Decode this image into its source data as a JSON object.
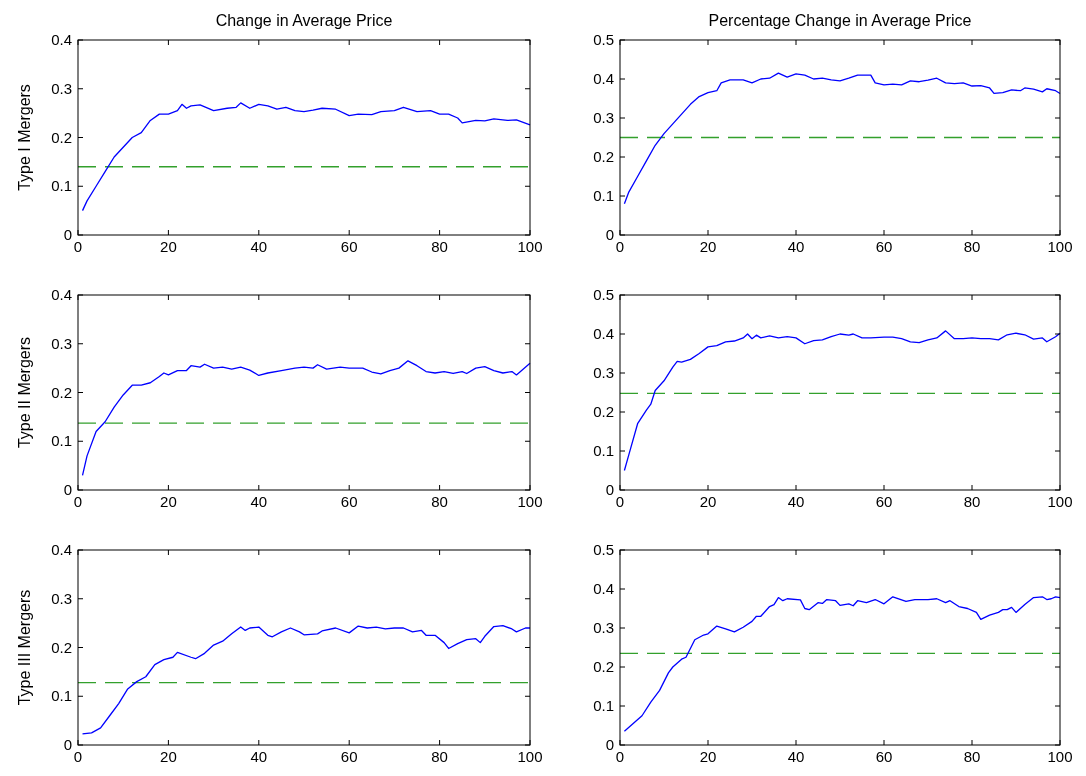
{
  "chart_data": [
    {
      "type": "line",
      "title": "Change in Average Price",
      "ylabel": "Type I Mergers",
      "xlim": [
        0,
        100
      ],
      "xticks": [
        0,
        20,
        40,
        60,
        80,
        100
      ],
      "ylim": [
        0,
        0.4
      ],
      "yticks": [
        0,
        0.1,
        0.2,
        0.3,
        0.4
      ],
      "grid": false,
      "line_style": "solid",
      "ref_lines": [
        {
          "axis": "y",
          "value": 0.14,
          "color": "#33a02c",
          "line_style": "dashed"
        }
      ],
      "series": [
        {
          "color": "#0000ff",
          "x": [
            1,
            2,
            4,
            6,
            8,
            10,
            12,
            14,
            16,
            18,
            20,
            22,
            23,
            24,
            25,
            27,
            30,
            33,
            35,
            36,
            38,
            40,
            42,
            44,
            46,
            48,
            50,
            52,
            54,
            57,
            60,
            62,
            65,
            67,
            70,
            72,
            75,
            78,
            80,
            82,
            84,
            85,
            88,
            90,
            92,
            95,
            97,
            100
          ],
          "values": [
            0.05,
            0.07,
            0.1,
            0.13,
            0.16,
            0.18,
            0.2,
            0.21,
            0.235,
            0.248,
            0.248,
            0.255,
            0.268,
            0.26,
            0.265,
            0.267,
            0.255,
            0.26,
            0.262,
            0.271,
            0.26,
            0.268,
            0.265,
            0.258,
            0.262,
            0.255,
            0.253,
            0.256,
            0.26,
            0.258,
            0.245,
            0.248,
            0.247,
            0.253,
            0.255,
            0.262,
            0.253,
            0.255,
            0.248,
            0.248,
            0.24,
            0.23,
            0.235,
            0.234,
            0.238,
            0.235,
            0.236,
            0.226
          ]
        }
      ]
    },
    {
      "type": "line",
      "title": "Percentage Change in Average Price",
      "xlim": [
        0,
        100
      ],
      "xticks": [
        0,
        20,
        40,
        60,
        80,
        100
      ],
      "ylim": [
        0,
        0.5
      ],
      "yticks": [
        0,
        0.1,
        0.2,
        0.3,
        0.4,
        0.5
      ],
      "grid": false,
      "line_style": "solid",
      "ref_lines": [
        {
          "axis": "y",
          "value": 0.25,
          "color": "#33a02c",
          "line_style": "dashed"
        }
      ],
      "series": [
        {
          "color": "#0000ff",
          "x": [
            1,
            2,
            4,
            6,
            8,
            10,
            12,
            14,
            16,
            18,
            20,
            22,
            23,
            25,
            28,
            30,
            32,
            34,
            36,
            38,
            40,
            42,
            44,
            46,
            48,
            50,
            52,
            54,
            57,
            58,
            60,
            62,
            64,
            66,
            68,
            70,
            72,
            74,
            76,
            78,
            80,
            82,
            84,
            85,
            87,
            89,
            91,
            92,
            94,
            96,
            97,
            99,
            100
          ],
          "values": [
            0.08,
            0.11,
            0.15,
            0.19,
            0.23,
            0.26,
            0.285,
            0.31,
            0.335,
            0.355,
            0.365,
            0.37,
            0.39,
            0.398,
            0.398,
            0.39,
            0.4,
            0.402,
            0.415,
            0.405,
            0.413,
            0.41,
            0.4,
            0.402,
            0.398,
            0.395,
            0.402,
            0.41,
            0.41,
            0.39,
            0.385,
            0.387,
            0.385,
            0.395,
            0.393,
            0.397,
            0.402,
            0.39,
            0.388,
            0.39,
            0.382,
            0.383,
            0.377,
            0.363,
            0.365,
            0.372,
            0.37,
            0.377,
            0.374,
            0.367,
            0.375,
            0.37,
            0.363
          ]
        }
      ]
    },
    {
      "type": "line",
      "ylabel": "Type II Mergers",
      "xlim": [
        0,
        100
      ],
      "xticks": [
        0,
        20,
        40,
        60,
        80,
        100
      ],
      "ylim": [
        0,
        0.4
      ],
      "yticks": [
        0,
        0.1,
        0.2,
        0.3,
        0.4
      ],
      "grid": false,
      "line_style": "solid",
      "ref_lines": [
        {
          "axis": "y",
          "value": 0.137,
          "color": "#33a02c",
          "line_style": "dashed"
        }
      ],
      "series": [
        {
          "color": "#0000ff",
          "x": [
            1,
            2,
            4,
            6,
            8,
            10,
            12,
            14,
            16,
            18,
            19,
            20,
            22,
            24,
            25,
            27,
            28,
            30,
            32,
            34,
            36,
            38,
            40,
            42,
            45,
            48,
            50,
            52,
            53,
            55,
            58,
            60,
            63,
            65,
            67,
            69,
            71,
            73,
            75,
            77,
            79,
            81,
            83,
            85,
            86,
            88,
            90,
            92,
            94,
            96,
            97,
            100
          ],
          "values": [
            0.03,
            0.07,
            0.12,
            0.14,
            0.17,
            0.195,
            0.215,
            0.215,
            0.22,
            0.233,
            0.24,
            0.236,
            0.245,
            0.245,
            0.255,
            0.252,
            0.258,
            0.25,
            0.252,
            0.248,
            0.252,
            0.246,
            0.235,
            0.24,
            0.245,
            0.25,
            0.252,
            0.25,
            0.257,
            0.248,
            0.252,
            0.25,
            0.25,
            0.242,
            0.238,
            0.245,
            0.25,
            0.265,
            0.255,
            0.243,
            0.24,
            0.243,
            0.239,
            0.243,
            0.239,
            0.25,
            0.253,
            0.245,
            0.24,
            0.243,
            0.236,
            0.26
          ]
        }
      ]
    },
    {
      "type": "line",
      "xlim": [
        0,
        100
      ],
      "xticks": [
        0,
        20,
        40,
        60,
        80,
        100
      ],
      "ylim": [
        0,
        0.5
      ],
      "yticks": [
        0,
        0.1,
        0.2,
        0.3,
        0.4,
        0.5
      ],
      "grid": false,
      "line_style": "solid",
      "ref_lines": [
        {
          "axis": "y",
          "value": 0.248,
          "color": "#33a02c",
          "line_style": "dashed"
        }
      ],
      "series": [
        {
          "color": "#0000ff",
          "x": [
            1,
            2,
            4,
            6,
            7,
            8,
            10,
            12,
            13,
            14,
            16,
            18,
            20,
            22,
            24,
            26,
            28,
            29,
            30,
            31,
            32,
            34,
            36,
            38,
            40,
            42,
            44,
            46,
            48,
            50,
            52,
            53,
            55,
            57,
            60,
            62,
            64,
            66,
            68,
            70,
            72,
            74,
            76,
            78,
            80,
            82,
            84,
            86,
            88,
            90,
            92,
            94,
            96,
            97,
            99,
            100
          ],
          "values": [
            0.05,
            0.09,
            0.17,
            0.205,
            0.22,
            0.255,
            0.28,
            0.315,
            0.33,
            0.328,
            0.335,
            0.35,
            0.367,
            0.37,
            0.38,
            0.382,
            0.39,
            0.4,
            0.388,
            0.397,
            0.39,
            0.395,
            0.39,
            0.393,
            0.39,
            0.375,
            0.383,
            0.385,
            0.393,
            0.4,
            0.397,
            0.4,
            0.39,
            0.39,
            0.392,
            0.392,
            0.388,
            0.38,
            0.378,
            0.385,
            0.39,
            0.408,
            0.388,
            0.388,
            0.39,
            0.388,
            0.388,
            0.385,
            0.398,
            0.402,
            0.398,
            0.387,
            0.39,
            0.38,
            0.393,
            0.402
          ]
        }
      ]
    },
    {
      "type": "line",
      "ylabel": "Type III Mergers",
      "xlim": [
        0,
        100
      ],
      "xticks": [
        0,
        20,
        40,
        60,
        80,
        100
      ],
      "ylim": [
        0,
        0.4
      ],
      "yticks": [
        0,
        0.1,
        0.2,
        0.3,
        0.4
      ],
      "grid": false,
      "line_style": "solid",
      "ref_lines": [
        {
          "axis": "y",
          "value": 0.128,
          "color": "#33a02c",
          "line_style": "dashed"
        }
      ],
      "series": [
        {
          "color": "#0000ff",
          "x": [
            1,
            3,
            5,
            7,
            9,
            11,
            13,
            15,
            17,
            19,
            21,
            22,
            25,
            26,
            28,
            30,
            32,
            34,
            36,
            37,
            38,
            40,
            42,
            43,
            45,
            47,
            49,
            50,
            53,
            54,
            57,
            60,
            62,
            64,
            66,
            68,
            70,
            72,
            74,
            76,
            77,
            79,
            81,
            82,
            84,
            86,
            88,
            89,
            90,
            92,
            94,
            96,
            97,
            99,
            100
          ],
          "values": [
            0.023,
            0.025,
            0.035,
            0.06,
            0.085,
            0.115,
            0.13,
            0.14,
            0.165,
            0.175,
            0.18,
            0.19,
            0.18,
            0.177,
            0.188,
            0.205,
            0.213,
            0.228,
            0.242,
            0.235,
            0.24,
            0.242,
            0.225,
            0.222,
            0.232,
            0.24,
            0.232,
            0.226,
            0.228,
            0.234,
            0.24,
            0.23,
            0.244,
            0.24,
            0.242,
            0.238,
            0.24,
            0.24,
            0.232,
            0.235,
            0.225,
            0.225,
            0.21,
            0.198,
            0.208,
            0.216,
            0.218,
            0.21,
            0.223,
            0.243,
            0.245,
            0.238,
            0.232,
            0.24,
            0.24
          ]
        }
      ]
    },
    {
      "type": "line",
      "xlim": [
        0,
        100
      ],
      "xticks": [
        0,
        20,
        40,
        60,
        80,
        100
      ],
      "ylim": [
        0,
        0.5
      ],
      "yticks": [
        0,
        0.1,
        0.2,
        0.3,
        0.4,
        0.5
      ],
      "grid": false,
      "line_style": "solid",
      "ref_lines": [
        {
          "axis": "y",
          "value": 0.235,
          "color": "#33a02c",
          "line_style": "dashed"
        }
      ],
      "series": [
        {
          "color": "#0000ff",
          "x": [
            1,
            3,
            5,
            7,
            9,
            11,
            12,
            14,
            15,
            17,
            19,
            20,
            22,
            24,
            26,
            28,
            30,
            31,
            32,
            34,
            35,
            36,
            37,
            38,
            41,
            42,
            43,
            45,
            46,
            47,
            49,
            50,
            52,
            53,
            54,
            56,
            58,
            60,
            62,
            64,
            65,
            67,
            70,
            72,
            74,
            75,
            77,
            79,
            81,
            82,
            84,
            86,
            87,
            88,
            89,
            90,
            92,
            94,
            96,
            97,
            98,
            99,
            100
          ],
          "values": [
            0.035,
            0.055,
            0.075,
            0.11,
            0.14,
            0.185,
            0.2,
            0.22,
            0.225,
            0.27,
            0.282,
            0.285,
            0.305,
            0.298,
            0.29,
            0.302,
            0.317,
            0.33,
            0.33,
            0.355,
            0.36,
            0.378,
            0.37,
            0.375,
            0.372,
            0.35,
            0.347,
            0.365,
            0.363,
            0.373,
            0.37,
            0.358,
            0.362,
            0.357,
            0.37,
            0.365,
            0.373,
            0.362,
            0.38,
            0.372,
            0.368,
            0.373,
            0.373,
            0.375,
            0.365,
            0.37,
            0.355,
            0.35,
            0.34,
            0.322,
            0.333,
            0.34,
            0.347,
            0.347,
            0.353,
            0.34,
            0.36,
            0.378,
            0.38,
            0.373,
            0.375,
            0.38,
            0.378
          ]
        }
      ]
    }
  ]
}
